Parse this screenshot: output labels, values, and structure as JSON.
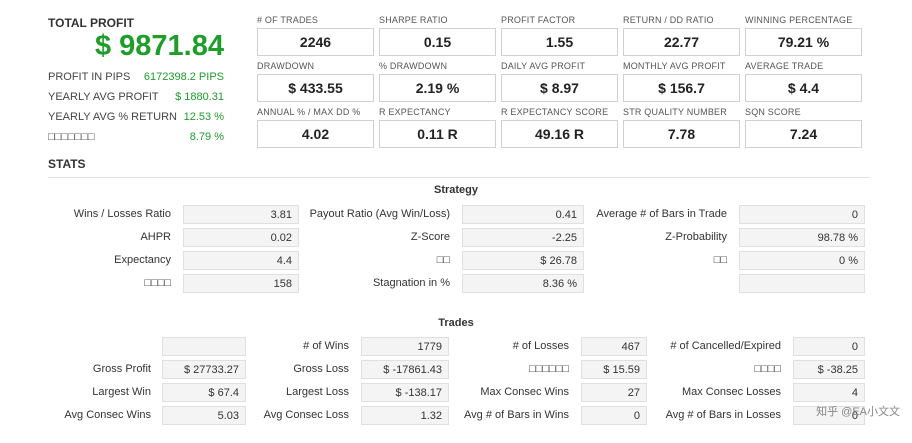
{
  "summary": {
    "total_profit_label": "TOTAL PROFIT",
    "total_profit_value": "$ 9871.84",
    "rows": [
      {
        "label": "PROFIT IN PIPS",
        "value": "6172398.2 PIPS"
      },
      {
        "label": "YEARLY AVG PROFIT",
        "value": "$ 1880.31"
      },
      {
        "label": "YEARLY AVG % RETURN",
        "value": "12.53 %"
      },
      {
        "label": "□□□□□□□",
        "value": "8.79 %"
      }
    ]
  },
  "metrics": [
    {
      "label": "# OF TRADES",
      "value": "2246"
    },
    {
      "label": "SHARPE RATIO",
      "value": "0.15"
    },
    {
      "label": "PROFIT FACTOR",
      "value": "1.55"
    },
    {
      "label": "RETURN / DD RATIO",
      "value": "22.77"
    },
    {
      "label": "WINNING PERCENTAGE",
      "value": "79.21 %"
    },
    {
      "label": "DRAWDOWN",
      "value": "$ 433.55"
    },
    {
      "label": "% DRAWDOWN",
      "value": "2.19 %"
    },
    {
      "label": "DAILY AVG PROFIT",
      "value": "$ 8.97"
    },
    {
      "label": "MONTHLY AVG PROFIT",
      "value": "$ 156.7"
    },
    {
      "label": "AVERAGE TRADE",
      "value": "$ 4.4"
    },
    {
      "label": "ANNUAL % / MAX DD %",
      "value": "4.02"
    },
    {
      "label": "R EXPECTANCY",
      "value": "0.11 R"
    },
    {
      "label": "R EXPECTANCY SCORE",
      "value": "49.16 R"
    },
    {
      "label": "STR QUALITY NUMBER",
      "value": "7.78"
    },
    {
      "label": "SQN SCORE",
      "value": "7.24"
    }
  ],
  "stats_title": "STATS",
  "strategy": {
    "title": "Strategy",
    "rows": [
      [
        {
          "label": "Wins / Losses Ratio",
          "value": "3.81"
        },
        {
          "label": "Payout Ratio (Avg Win/Loss)",
          "value": "0.41"
        },
        {
          "label": "Average # of Bars in Trade",
          "value": "0"
        }
      ],
      [
        {
          "label": "AHPR",
          "value": "0.02"
        },
        {
          "label": "Z-Score",
          "value": "-2.25"
        },
        {
          "label": "Z-Probability",
          "value": "98.78 %"
        }
      ],
      [
        {
          "label": "Expectancy",
          "value": "4.4"
        },
        {
          "label": "□□",
          "value": "$ 26.78"
        },
        {
          "label": "□□",
          "value": "0 %"
        }
      ],
      [
        {
          "label": "□□□□",
          "value": "158"
        },
        {
          "label": "Stagnation in %",
          "value": "8.36 %"
        },
        {
          "label": "",
          "value": ""
        }
      ]
    ]
  },
  "trades": {
    "title": "Trades",
    "rows": [
      [
        {
          "label": "",
          "value": ""
        },
        {
          "label": "# of Wins",
          "value": "1779"
        },
        {
          "label": "# of Losses",
          "value": "467"
        },
        {
          "label": "# of Cancelled/Expired",
          "value": "0"
        }
      ],
      [
        {
          "label": "Gross Profit",
          "value": "$ 27733.27"
        },
        {
          "label": "Gross Loss",
          "value": "$ -17861.43"
        },
        {
          "label": "□□□□□□",
          "value": "$ 15.59"
        },
        {
          "label": "□□□□",
          "value": "$ -38.25"
        }
      ],
      [
        {
          "label": "Largest Win",
          "value": "$ 67.4"
        },
        {
          "label": "Largest Loss",
          "value": "$ -138.17"
        },
        {
          "label": "Max Consec Wins",
          "value": "27"
        },
        {
          "label": "Max Consec Losses",
          "value": "4"
        }
      ],
      [
        {
          "label": "Avg Consec Wins",
          "value": "5.03"
        },
        {
          "label": "Avg Consec Loss",
          "value": "1.32"
        },
        {
          "label": "Avg # of Bars in Wins",
          "value": "0"
        },
        {
          "label": "Avg # of Bars in Losses",
          "value": "0"
        }
      ]
    ]
  },
  "watermark": "知乎 @EA小文文"
}
